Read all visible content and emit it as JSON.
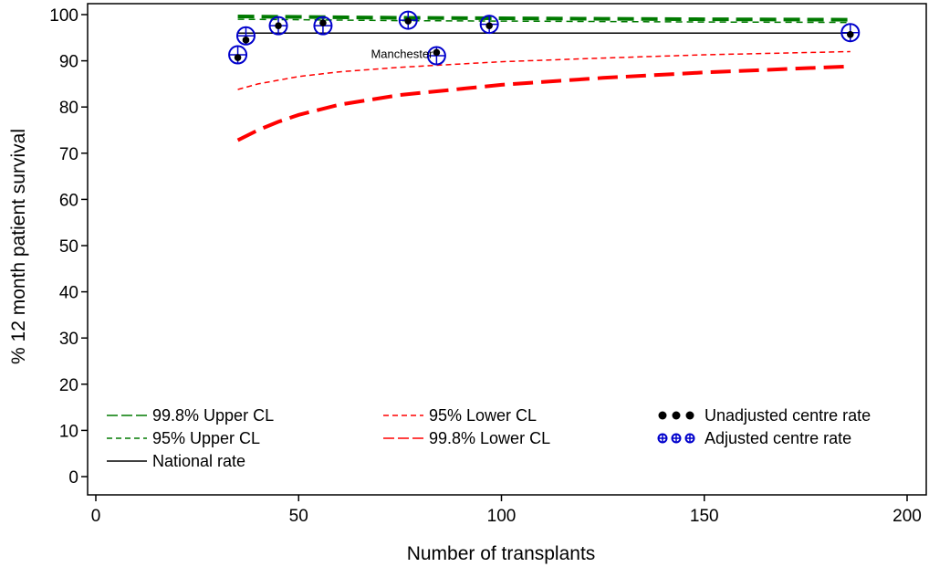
{
  "chart_data": {
    "type": "line",
    "title": "",
    "xlabel": "Number of transplants",
    "ylabel": "% 12 month patient survival",
    "xlim": [
      0,
      200
    ],
    "ylim": [
      0,
      100
    ],
    "xticks": [
      0,
      50,
      100,
      150,
      200
    ],
    "yticks": [
      0,
      10,
      20,
      30,
      40,
      50,
      60,
      70,
      80,
      90,
      100
    ],
    "grid": false,
    "legend_position": "bottom",
    "colors": {
      "upper_998": "#007a00",
      "upper_95": "#007a00",
      "lower_95": "#ff0000",
      "lower_998": "#ff0000",
      "national": "#000000",
      "unadjusted": "#000000",
      "adjusted": "#0000cc"
    },
    "series": [
      {
        "name": "99.8% Upper CL",
        "style": "long-dash thick",
        "x": [
          35,
          50,
          75,
          100,
          125,
          150,
          186
        ],
        "y": [
          99.6,
          99.5,
          99.3,
          99.2,
          99.1,
          99.0,
          98.9
        ]
      },
      {
        "name": "95% Upper CL",
        "style": "short-dash thin",
        "x": [
          35,
          50,
          75,
          100,
          125,
          150,
          186
        ],
        "y": [
          99.0,
          98.9,
          98.7,
          98.6,
          98.5,
          98.4,
          98.3
        ]
      },
      {
        "name": "95% Lower CL",
        "style": "short-dash thin",
        "x": [
          35,
          40,
          50,
          60,
          75,
          100,
          125,
          150,
          186
        ],
        "y": [
          83.8,
          85.0,
          86.6,
          87.6,
          88.6,
          89.8,
          90.6,
          91.3,
          92.0
        ]
      },
      {
        "name": "99.8% Lower CL",
        "style": "long-dash thick",
        "x": [
          35,
          40,
          45,
          50,
          60,
          75,
          100,
          125,
          150,
          186
        ],
        "y": [
          72.8,
          75.0,
          76.8,
          78.3,
          80.5,
          82.6,
          84.8,
          86.3,
          87.5,
          88.8
        ]
      },
      {
        "name": "National rate",
        "style": "solid thin",
        "x": [
          35,
          186
        ],
        "y": [
          96.0,
          96.0
        ]
      }
    ],
    "points": {
      "unadjusted_name": "Unadjusted centre rate",
      "adjusted_name": "Adjusted centre rate",
      "unadjusted": [
        {
          "x": 35,
          "y": 90.7
        },
        {
          "x": 37,
          "y": 94.5
        },
        {
          "x": 45,
          "y": 97.6
        },
        {
          "x": 56,
          "y": 98.2
        },
        {
          "x": 77,
          "y": 98.6
        },
        {
          "x": 84,
          "y": 91.8
        },
        {
          "x": 97,
          "y": 97.6
        },
        {
          "x": 186,
          "y": 95.7
        }
      ],
      "adjusted": [
        {
          "x": 35,
          "y": 91.3
        },
        {
          "x": 37,
          "y": 95.4
        },
        {
          "x": 45,
          "y": 97.6
        },
        {
          "x": 56,
          "y": 97.6
        },
        {
          "x": 77,
          "y": 98.8
        },
        {
          "x": 84,
          "y": 91.1
        },
        {
          "x": 97,
          "y": 97.9
        },
        {
          "x": 186,
          "y": 96.1
        }
      ]
    },
    "annotations": [
      {
        "text": "Manchester",
        "x": 84,
        "y": 91
      }
    ],
    "legend": {
      "col1": [
        "99.8% Upper CL",
        "95% Upper CL",
        "National rate"
      ],
      "col2": [
        "95% Lower CL",
        "99.8% Lower CL"
      ],
      "col3": [
        "Unadjusted centre rate",
        "Adjusted centre rate"
      ]
    }
  }
}
